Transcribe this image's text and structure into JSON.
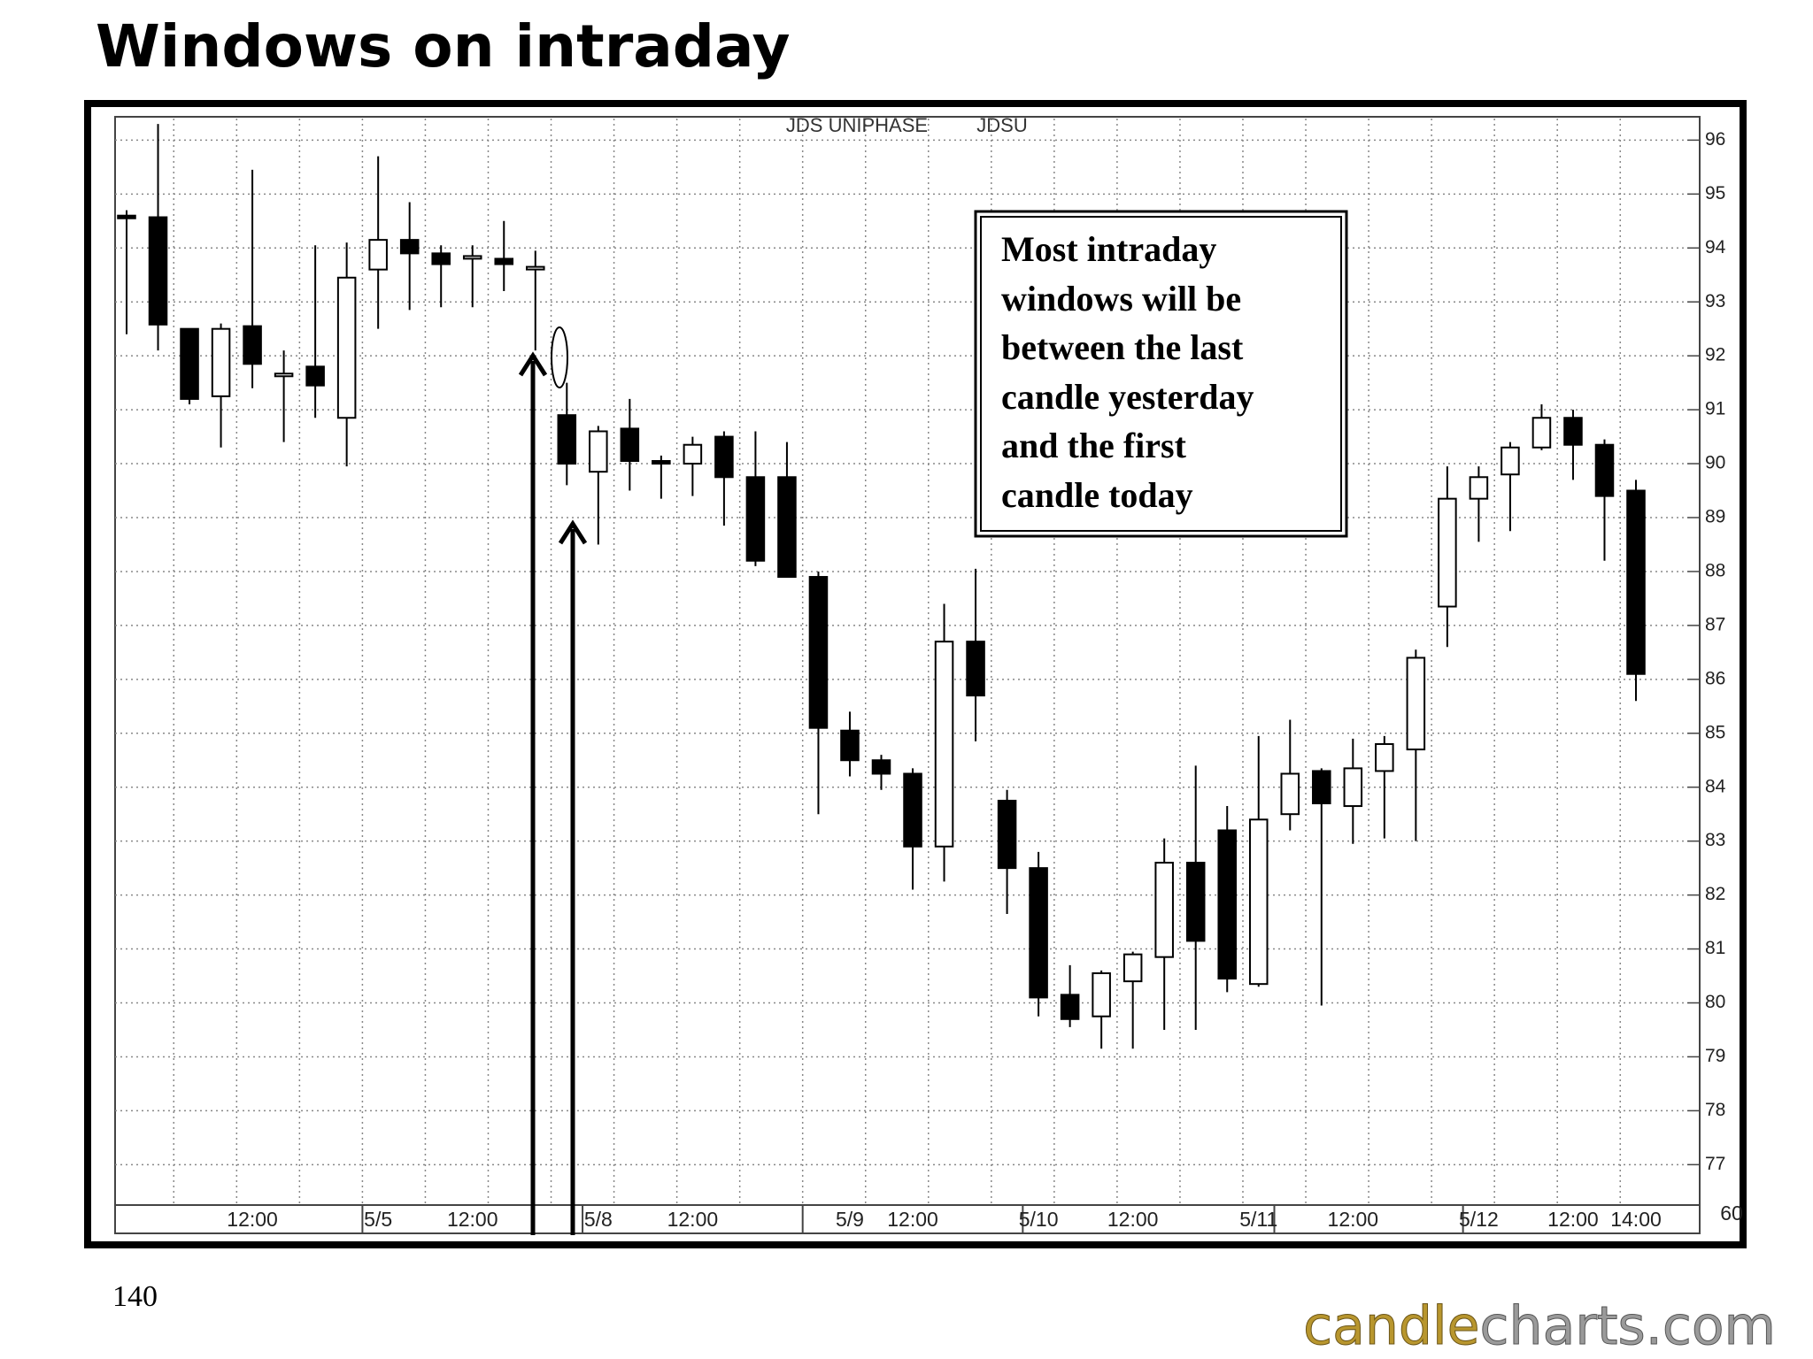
{
  "chart_data": {
    "type": "candlestick",
    "title": "Windows on intraday",
    "subtitle": [
      "JDS UNIPHASE",
      "JDSU"
    ],
    "annotation": [
      "Most intraday",
      "windows will be",
      "between the last",
      "candle yesterday",
      "and the first",
      "candle today"
    ],
    "axis_note": "60",
    "page_number": "140",
    "logo": [
      "candle",
      "charts.com"
    ],
    "categories": [
      null,
      null,
      null,
      null,
      "12:00",
      null,
      null,
      null,
      "5/5",
      null,
      null,
      "12:00",
      null,
      null,
      null,
      "5/8",
      null,
      null,
      "12:00",
      null,
      null,
      null,
      null,
      "5/9",
      null,
      "12:00",
      null,
      null,
      null,
      "5/10",
      null,
      null,
      "12:00",
      null,
      null,
      null,
      "5/11",
      null,
      null,
      "12:00",
      null,
      null,
      null,
      "5/12",
      null,
      null,
      "12:00",
      null,
      "14:00"
    ],
    "open": [
      94.6,
      94.57,
      92.5,
      91.25,
      92.55,
      91.67,
      91.8,
      90.85,
      93.6,
      94.15,
      93.9,
      93.85,
      93.8,
      93.65,
      90.9,
      89.85,
      90.65,
      90.05,
      90.0,
      90.5,
      89.75,
      89.75,
      87.9,
      85.05,
      84.5,
      84.25,
      82.9,
      86.7,
      83.75,
      82.5,
      80.15,
      79.75,
      80.4,
      80.85,
      82.6,
      83.2,
      80.35,
      83.5,
      84.3,
      83.65,
      84.3,
      84.7,
      87.35,
      89.35,
      89.8,
      90.3,
      90.85,
      90.35,
      89.5
    ],
    "high": [
      94.7,
      96.3,
      92.5,
      92.6,
      95.45,
      92.1,
      94.05,
      94.1,
      95.7,
      94.85,
      94.05,
      94.05,
      94.5,
      93.95,
      91.5,
      90.7,
      91.2,
      90.15,
      90.5,
      90.6,
      90.6,
      90.4,
      88.0,
      85.4,
      84.6,
      84.35,
      87.4,
      88.05,
      83.95,
      82.8,
      80.7,
      80.6,
      80.95,
      83.05,
      84.4,
      83.65,
      84.95,
      85.25,
      84.35,
      84.9,
      84.95,
      86.55,
      89.95,
      89.95,
      90.4,
      91.1,
      91.0,
      90.45,
      89.7
    ],
    "low": [
      92.4,
      92.1,
      91.1,
      90.3,
      91.4,
      90.4,
      90.85,
      89.95,
      92.5,
      92.85,
      92.9,
      92.9,
      93.2,
      92.1,
      89.6,
      88.5,
      89.5,
      89.35,
      89.4,
      88.85,
      88.1,
      87.9,
      83.5,
      84.2,
      83.95,
      82.1,
      82.25,
      84.85,
      81.65,
      79.75,
      79.55,
      79.15,
      79.15,
      79.5,
      79.5,
      80.2,
      80.3,
      83.2,
      79.95,
      82.95,
      83.05,
      83.0,
      86.6,
      88.55,
      88.75,
      90.25,
      89.7,
      88.2,
      85.6
    ],
    "close": [
      94.55,
      92.58,
      91.2,
      92.5,
      91.85,
      91.67,
      91.45,
      93.45,
      94.15,
      93.9,
      93.7,
      93.85,
      93.7,
      93.65,
      90.0,
      90.6,
      90.05,
      90.0,
      90.35,
      89.75,
      88.2,
      87.9,
      85.1,
      84.5,
      84.25,
      82.9,
      86.7,
      85.7,
      82.5,
      80.1,
      79.7,
      80.55,
      80.9,
      82.6,
      81.15,
      80.45,
      83.4,
      84.25,
      83.7,
      84.35,
      84.8,
      86.4,
      89.35,
      89.75,
      90.3,
      90.85,
      90.35,
      89.4,
      86.1
    ],
    "up_color": "#ffffff",
    "down_color": "#000000",
    "ylim": [
      76.3,
      96.4
    ],
    "yticks": [
      77,
      78,
      79,
      80,
      81,
      82,
      83,
      84,
      85,
      86,
      87,
      88,
      89,
      90,
      91,
      92,
      93,
      94,
      95,
      96
    ],
    "grid": true
  }
}
